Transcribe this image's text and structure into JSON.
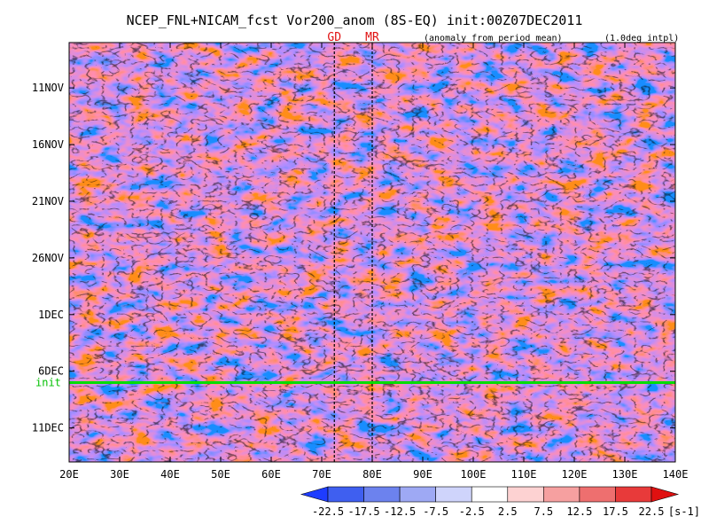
{
  "chart_data": {
    "type": "heatmap",
    "title": "NCEP_FNL+NICAM_fcst Vor200_anom (8S-EQ) init:00Z07DEC2011",
    "subtitle_left": "(anomaly from period mean)",
    "subtitle_right": "(1.0deg intpl)",
    "xlabel": "",
    "ylabel": "",
    "x_ticks": [
      "20E",
      "30E",
      "40E",
      "50E",
      "60E",
      "70E",
      "80E",
      "90E",
      "100E",
      "110E",
      "120E",
      "130E",
      "140E"
    ],
    "x_tick_values": [
      20,
      30,
      40,
      50,
      60,
      70,
      80,
      90,
      100,
      110,
      120,
      130,
      140
    ],
    "xlim": [
      20,
      140
    ],
    "y_ticks": [
      "11NOV",
      "16NOV",
      "21NOV",
      "26NOV",
      "1DEC",
      "6DEC",
      "11DEC"
    ],
    "y_tick_days": [
      11,
      16,
      21,
      26,
      31,
      36,
      41
    ],
    "ylim_days": [
      7,
      44
    ],
    "time_axis_direction": "downward",
    "init_line": {
      "label": "init",
      "day": 37,
      "color": "#00dd00"
    },
    "markers": [
      {
        "label": "GD",
        "lon": 72.5
      },
      {
        "label": "MR",
        "lon": 80
      }
    ],
    "colorbar": {
      "levels": [
        -22.5,
        -17.5,
        -12.5,
        -7.5,
        -2.5,
        2.5,
        7.5,
        12.5,
        17.5,
        22.5
      ],
      "labels": [
        "-22.5",
        "-17.5",
        "-12.5",
        "-7.5",
        "-2.5",
        "2.5",
        "7.5",
        "12.5",
        "17.5",
        "22.5"
      ],
      "colors": [
        "#1e3cff",
        "#3f5ff0",
        "#6c82ee",
        "#9ea9f4",
        "#cfd4fb",
        "#ffffff",
        "#fdd2d2",
        "#f6a0a0",
        "#ee6f6f",
        "#e83a3a",
        "#e01010"
      ],
      "units": "[s-1]"
    }
  }
}
